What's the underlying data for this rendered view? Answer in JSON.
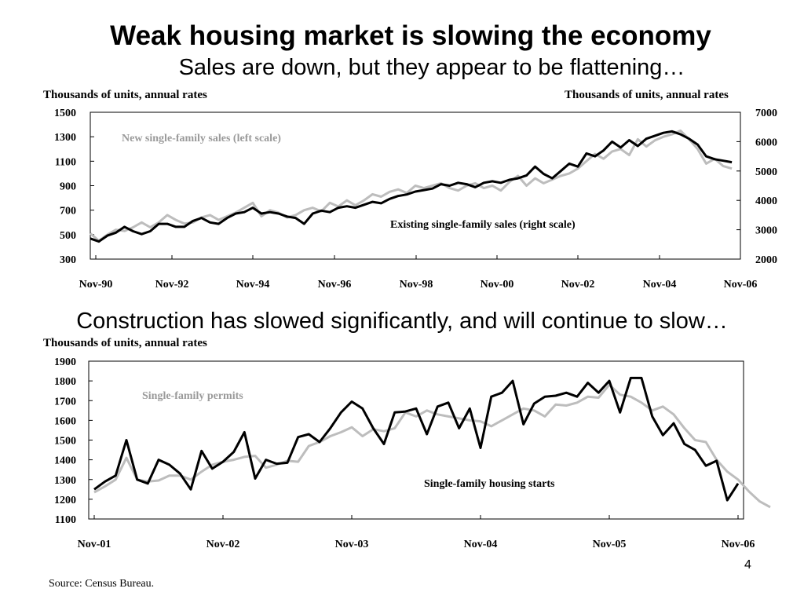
{
  "slide": {
    "title": "Weak housing market is slowing the economy",
    "subtitle": "Sales are down, but they appear to be flattening…",
    "section2_title": "Construction has slowed significantly, and will continue to slow…",
    "source": "Source: Census Bureau.",
    "page_number": "4"
  },
  "chart_data": [
    {
      "type": "line",
      "left_unit": "Thousands of  units, annual rates",
      "right_unit": "Thousands of  units, annual rates",
      "y_left": {
        "ticks": [
          300,
          500,
          700,
          900,
          1100,
          1300,
          1500
        ],
        "range": [
          300,
          1500
        ]
      },
      "y_right": {
        "ticks": [
          2000,
          3000,
          4000,
          5000,
          6000,
          7000
        ],
        "range": [
          2000,
          7000
        ]
      },
      "x_ticks": [
        "Nov-90",
        "Nov-92",
        "Nov-94",
        "Nov-96",
        "Nov-98",
        "Nov-00",
        "Nov-02",
        "Nov-04",
        "Nov-06"
      ],
      "grid": false,
      "series": [
        {
          "name": "New single-family sales (left scale)",
          "axis": "left",
          "color": "#bdbdbd",
          "points": [
            [
              0,
              510
            ],
            [
              3,
              450
            ],
            [
              6,
              500
            ],
            [
              9,
              540
            ],
            [
              12,
              530
            ],
            [
              15,
              560
            ],
            [
              18,
              600
            ],
            [
              21,
              560
            ],
            [
              24,
              600
            ],
            [
              27,
              660
            ],
            [
              30,
              620
            ],
            [
              33,
              590
            ],
            [
              36,
              600
            ],
            [
              39,
              640
            ],
            [
              42,
              660
            ],
            [
              45,
              620
            ],
            [
              48,
              650
            ],
            [
              51,
              680
            ],
            [
              54,
              720
            ],
            [
              57,
              760
            ],
            [
              60,
              650
            ],
            [
              63,
              700
            ],
            [
              66,
              680
            ],
            [
              69,
              640
            ],
            [
              72,
              660
            ],
            [
              75,
              700
            ],
            [
              78,
              720
            ],
            [
              81,
              690
            ],
            [
              84,
              760
            ],
            [
              87,
              730
            ],
            [
              90,
              780
            ],
            [
              93,
              740
            ],
            [
              96,
              780
            ],
            [
              99,
              830
            ],
            [
              102,
              810
            ],
            [
              105,
              850
            ],
            [
              108,
              870
            ],
            [
              111,
              840
            ],
            [
              114,
              900
            ],
            [
              117,
              880
            ],
            [
              120,
              900
            ],
            [
              123,
              920
            ],
            [
              126,
              880
            ],
            [
              129,
              860
            ],
            [
              132,
              900
            ],
            [
              135,
              920
            ],
            [
              138,
              880
            ],
            [
              141,
              900
            ],
            [
              144,
              860
            ],
            [
              147,
              930
            ],
            [
              150,
              980
            ],
            [
              153,
              900
            ],
            [
              156,
              960
            ],
            [
              159,
              920
            ],
            [
              162,
              950
            ],
            [
              165,
              980
            ],
            [
              168,
              1000
            ],
            [
              171,
              1040
            ],
            [
              174,
              1100
            ],
            [
              177,
              1160
            ],
            [
              180,
              1120
            ],
            [
              183,
              1180
            ],
            [
              186,
              1200
            ],
            [
              189,
              1150
            ],
            [
              192,
              1280
            ],
            [
              195,
              1220
            ],
            [
              198,
              1270
            ],
            [
              201,
              1300
            ],
            [
              204,
              1320
            ],
            [
              207,
              1350
            ],
            [
              210,
              1280
            ],
            [
              213,
              1200
            ],
            [
              216,
              1080
            ],
            [
              219,
              1120
            ],
            [
              222,
              1060
            ],
            [
              225,
              1040
            ]
          ]
        },
        {
          "name": "Existing single-family sales (right scale)",
          "axis": "right",
          "color": "#000000",
          "points": [
            [
              0,
              2700
            ],
            [
              3,
              2600
            ],
            [
              6,
              2800
            ],
            [
              9,
              2900
            ],
            [
              12,
              3100
            ],
            [
              15,
              2950
            ],
            [
              18,
              2850
            ],
            [
              21,
              2950
            ],
            [
              24,
              3200
            ],
            [
              27,
              3200
            ],
            [
              30,
              3100
            ],
            [
              33,
              3100
            ],
            [
              36,
              3300
            ],
            [
              39,
              3400
            ],
            [
              42,
              3250
            ],
            [
              45,
              3200
            ],
            [
              48,
              3400
            ],
            [
              51,
              3550
            ],
            [
              54,
              3600
            ],
            [
              57,
              3750
            ],
            [
              60,
              3550
            ],
            [
              63,
              3600
            ],
            [
              66,
              3550
            ],
            [
              69,
              3450
            ],
            [
              72,
              3400
            ],
            [
              75,
              3200
            ],
            [
              78,
              3550
            ],
            [
              81,
              3650
            ],
            [
              84,
              3600
            ],
            [
              87,
              3750
            ],
            [
              90,
              3800
            ],
            [
              93,
              3750
            ],
            [
              96,
              3850
            ],
            [
              99,
              3950
            ],
            [
              102,
              3900
            ],
            [
              105,
              4050
            ],
            [
              108,
              4150
            ],
            [
              111,
              4200
            ],
            [
              114,
              4300
            ],
            [
              117,
              4350
            ],
            [
              120,
              4400
            ],
            [
              123,
              4550
            ],
            [
              126,
              4500
            ],
            [
              129,
              4600
            ],
            [
              132,
              4550
            ],
            [
              135,
              4450
            ],
            [
              138,
              4600
            ],
            [
              141,
              4650
            ],
            [
              144,
              4600
            ],
            [
              147,
              4700
            ],
            [
              150,
              4750
            ],
            [
              153,
              4850
            ],
            [
              156,
              5150
            ],
            [
              159,
              4900
            ],
            [
              162,
              4750
            ],
            [
              165,
              5000
            ],
            [
              168,
              5250
            ],
            [
              171,
              5150
            ],
            [
              174,
              5600
            ],
            [
              177,
              5500
            ],
            [
              180,
              5700
            ],
            [
              183,
              6000
            ],
            [
              186,
              5800
            ],
            [
              189,
              6050
            ],
            [
              192,
              5850
            ],
            [
              195,
              6100
            ],
            [
              198,
              6200
            ],
            [
              201,
              6300
            ],
            [
              204,
              6350
            ],
            [
              207,
              6250
            ],
            [
              210,
              6100
            ],
            [
              213,
              5900
            ],
            [
              216,
              5500
            ],
            [
              219,
              5400
            ],
            [
              222,
              5350
            ],
            [
              225,
              5300
            ]
          ]
        }
      ],
      "annotations": [
        "New single-family sales (left scale)",
        "Existing single-family sales (right scale)"
      ]
    },
    {
      "type": "line",
      "y_unit": "Thousands of  units, annual rates",
      "y": {
        "ticks": [
          1100,
          1200,
          1300,
          1400,
          1500,
          1600,
          1700,
          1800,
          1900
        ],
        "range": [
          1100,
          1900
        ]
      },
      "x_ticks": [
        "Nov-01",
        "Nov-02",
        "Nov-03",
        "Nov-04",
        "Nov-05",
        "Nov-06"
      ],
      "grid": false,
      "series": [
        {
          "name": "Single-family permits",
          "color": "#bdbdbd",
          "values": [
            1235,
            1265,
            1300,
            1410,
            1300,
            1290,
            1295,
            1320,
            1320,
            1300,
            1340,
            1375,
            1390,
            1400,
            1415,
            1420,
            1360,
            1375,
            1395,
            1390,
            1470,
            1490,
            1520,
            1540,
            1565,
            1520,
            1555,
            1545,
            1560,
            1640,
            1620,
            1650,
            1630,
            1620,
            1610,
            1600,
            1595,
            1570,
            1600,
            1630,
            1660,
            1650,
            1620,
            1680,
            1675,
            1690,
            1720,
            1715,
            1780,
            1730,
            1720,
            1690,
            1650,
            1670,
            1630,
            1560,
            1500,
            1490,
            1400,
            1340,
            1300,
            1240,
            1190,
            1160
          ]
        },
        {
          "name": "Single-family housing starts",
          "color": "#000000",
          "values": [
            1250,
            1290,
            1320,
            1500,
            1300,
            1280,
            1400,
            1375,
            1330,
            1250,
            1445,
            1355,
            1390,
            1440,
            1540,
            1305,
            1400,
            1380,
            1385,
            1515,
            1530,
            1490,
            1560,
            1640,
            1695,
            1660,
            1560,
            1480,
            1640,
            1645,
            1660,
            1530,
            1670,
            1690,
            1560,
            1660,
            1460,
            1720,
            1740,
            1800,
            1580,
            1685,
            1720,
            1725,
            1740,
            1720,
            1790,
            1740,
            1800,
            1640,
            1815,
            1815,
            1620,
            1525,
            1585,
            1480,
            1450,
            1370,
            1395,
            1195,
            1280
          ]
        }
      ],
      "annotations": [
        "Single-family permits",
        "Single-family housing starts"
      ]
    }
  ]
}
